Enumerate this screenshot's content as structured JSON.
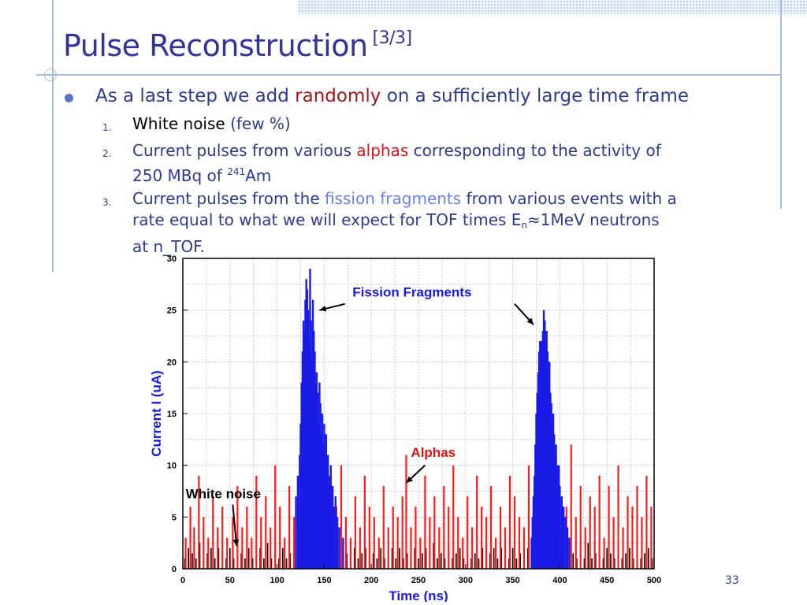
{
  "slide": {
    "title": "Pulse Reconstruction",
    "title_suffix": "[3/3]",
    "bullet_part1": "As a last step we add ",
    "bullet_highlight": "randomly",
    "bullet_part2": " on a sufficiently large time frame",
    "items": [
      {
        "num": "1.",
        "part1": "White noise ",
        "part1_note": "(few %)"
      },
      {
        "num": "2.",
        "part1": "Current pulses from various ",
        "highlight": "alphas",
        "part2": " corresponding to the activity of",
        "line2_a": "250 MBq of ",
        "line2_sup": "241",
        "line2_b": "Am"
      },
      {
        "num": "3.",
        "part1": "Current pulses from the ",
        "highlight": "fission fragments",
        "part2": " from various events with a",
        "line2_a": "rate equal to what we will expect for TOF times E",
        "line2_sub": "n",
        "line2_b": "≈1MeV neutrons",
        "line3": "at n_TOF."
      }
    ],
    "page_number": "33"
  },
  "colors": {
    "title": "#33339a",
    "text": "#2f3a8c",
    "fission_series": "#1a1ae6",
    "alpha_series": "#ff1a1a",
    "noise_series": "#000000"
  },
  "chart_data": {
    "type": "bar",
    "xlabel": "Time (ns)",
    "ylabel": "Current I (uA)",
    "xlim": [
      0,
      500
    ],
    "ylim": [
      0,
      30
    ],
    "xticks": [
      "0",
      "50",
      "100",
      "150",
      "200",
      "250",
      "300",
      "350",
      "400",
      "450",
      "500"
    ],
    "yticks": [
      "0",
      "5",
      "10",
      "15",
      "20",
      "25",
      "30"
    ],
    "grid": true,
    "annotations": [
      {
        "label": "Fission Fragments",
        "points_to_x": [
          145,
          385
        ]
      },
      {
        "label": "Alphas",
        "points_to_x": 237
      },
      {
        "label": "White noise",
        "points_to_x": 57
      }
    ],
    "series": [
      {
        "name": "Fission Fragments",
        "description_x_center": [
          140,
          385
        ],
        "x": [
          120,
          122,
          124,
          125,
          126,
          127,
          128,
          129,
          130,
          131,
          132,
          133,
          134,
          135,
          136,
          137,
          138,
          139,
          140,
          141,
          142,
          143,
          144,
          145,
          146,
          147,
          148,
          149,
          150,
          151,
          152,
          153,
          154,
          155,
          156,
          157,
          158,
          159,
          160,
          162,
          164,
          166,
          170,
          370,
          371,
          372,
          373,
          374,
          375,
          376,
          377,
          378,
          379,
          380,
          381,
          382,
          383,
          384,
          385,
          386,
          387,
          388,
          389,
          390,
          391,
          392,
          393,
          394,
          395,
          396,
          397,
          398,
          399,
          400,
          402,
          404,
          406,
          408,
          410
        ],
        "values": [
          7,
          9,
          11,
          14,
          18,
          21,
          24,
          23,
          26,
          28,
          27,
          25,
          22,
          29,
          24,
          20,
          26,
          23,
          21,
          18,
          19,
          17,
          14,
          18,
          16,
          13,
          15,
          12,
          14,
          11,
          13,
          10,
          11,
          8,
          9,
          10,
          7,
          8,
          6,
          7,
          5,
          4,
          3,
          3,
          5,
          7,
          9,
          12,
          15,
          17,
          19,
          21,
          22,
          20,
          22,
          23,
          25,
          24,
          22,
          23,
          21,
          18,
          20,
          17,
          16,
          14,
          15,
          13,
          11,
          12,
          10,
          9,
          10,
          8,
          7,
          6,
          5,
          4,
          3
        ]
      },
      {
        "name": "Alphas",
        "x": [
          3,
          8,
          12,
          17,
          22,
          27,
          32,
          37,
          42,
          47,
          53,
          58,
          63,
          68,
          73,
          78,
          83,
          88,
          93,
          98,
          103,
          108,
          113,
          118,
          123,
          128,
          133,
          138,
          143,
          148,
          153,
          158,
          163,
          168,
          173,
          178,
          183,
          188,
          193,
          198,
          203,
          208,
          213,
          218,
          223,
          228,
          233,
          237,
          242,
          247,
          252,
          257,
          262,
          267,
          272,
          277,
          282,
          287,
          292,
          297,
          302,
          307,
          312,
          317,
          322,
          327,
          332,
          337,
          342,
          347,
          352,
          357,
          362,
          367,
          372,
          377,
          382,
          387,
          392,
          397,
          402,
          407,
          412,
          417,
          422,
          427,
          432,
          437,
          442,
          447,
          452,
          457,
          462,
          467,
          472,
          477,
          482,
          487,
          492,
          497
        ],
        "values": [
          3,
          6,
          4,
          9,
          5,
          3,
          7,
          4,
          6,
          3,
          5,
          8,
          4,
          6,
          3,
          9,
          5,
          7,
          4,
          10,
          6,
          3,
          8,
          5,
          4,
          9,
          6,
          3,
          7,
          5,
          8,
          4,
          6,
          10,
          5,
          3,
          7,
          4,
          9,
          6,
          5,
          3,
          8,
          4,
          6,
          5,
          7,
          11,
          4,
          6,
          3,
          9,
          5,
          7,
          4,
          8,
          6,
          10,
          5,
          3,
          7,
          4,
          9,
          6,
          5,
          8,
          3,
          6,
          4,
          9,
          7,
          5,
          4,
          10,
          6,
          8,
          5,
          3,
          7,
          9,
          4,
          6,
          12,
          5,
          8,
          4,
          7,
          6,
          9,
          3,
          8,
          5,
          10,
          4,
          7,
          6,
          8,
          5,
          9,
          6
        ]
      },
      {
        "name": "White noise",
        "x": [
          2,
          6,
          10,
          14,
          18,
          22,
          26,
          30,
          34,
          38,
          42,
          46,
          50,
          54,
          58,
          62,
          66,
          70,
          74,
          78,
          82,
          86,
          90,
          94,
          98,
          102,
          106,
          110,
          114,
          118,
          122,
          126,
          130,
          134,
          138,
          142,
          146,
          150,
          154,
          158,
          162,
          166,
          170,
          174,
          178,
          182,
          186,
          190,
          194,
          198,
          202,
          206,
          210,
          214,
          218,
          222,
          226,
          230,
          234,
          238,
          242,
          246,
          250,
          254,
          258,
          262,
          266,
          270,
          274,
          278,
          282,
          286,
          290,
          294,
          298,
          302,
          306,
          310,
          314,
          318,
          322,
          326,
          330,
          334,
          338,
          342,
          346,
          350,
          354,
          358,
          362,
          366,
          370,
          374,
          378,
          382,
          386,
          390,
          394,
          398,
          402,
          406,
          410,
          414,
          418,
          422,
          426,
          430,
          434,
          438,
          442,
          446,
          450,
          454,
          458,
          462,
          466,
          470,
          474,
          478,
          482,
          486,
          490,
          494,
          498
        ],
        "values": [
          1,
          2,
          1.5,
          1,
          2.5,
          1,
          1.5,
          2,
          1,
          2,
          1.5,
          1,
          2,
          1,
          3,
          1.5,
          1,
          2,
          1,
          1.5,
          2,
          1,
          2.5,
          1,
          1.5,
          1,
          2,
          1,
          1.5,
          2,
          1,
          2,
          1,
          1.5,
          1,
          2,
          1,
          1.5,
          1,
          2,
          1,
          2.5,
          1,
          1.5,
          1,
          2,
          1,
          1.5,
          2,
          1,
          1.5,
          1,
          2,
          1,
          1.5,
          2,
          1,
          2,
          1,
          1.5,
          1,
          2,
          1,
          1.5,
          2,
          1,
          2.5,
          1,
          1.5,
          1,
          2,
          1,
          1.5,
          2,
          1,
          2,
          1,
          1.5,
          1,
          2,
          1,
          1.5,
          2,
          1,
          2,
          1.5,
          1,
          2,
          1,
          1.5,
          1,
          2,
          1,
          2,
          1.5,
          1,
          2,
          1,
          1.5,
          2,
          1,
          2,
          1,
          1.5,
          1,
          2,
          1,
          2.5,
          1,
          1.5,
          2,
          1,
          2,
          1.5,
          1,
          2,
          1,
          1.5,
          2,
          1,
          2,
          1,
          1.5,
          2,
          1
        ]
      }
    ]
  }
}
